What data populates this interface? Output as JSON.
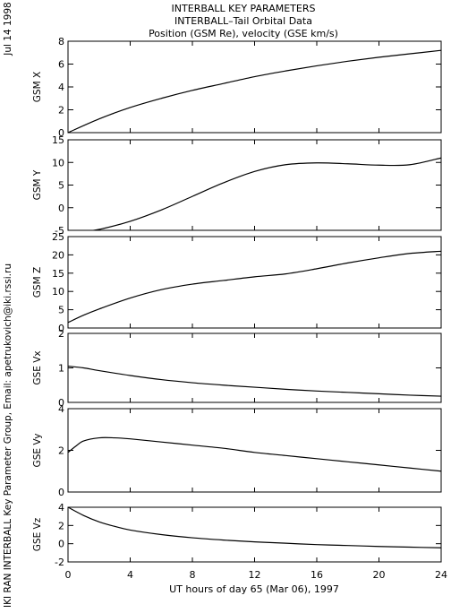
{
  "header": {
    "title_line1": "INTERBALL KEY PARAMETERS",
    "title_line2": "INTERBALL–Tail Orbital Data",
    "title_line3": "Position (GSM Re), velocity (GSE km/s)"
  },
  "side_labels": {
    "date": "Jul 14 1998",
    "credit": "IKI RAN INTERBALL Key Parameter Group, Email: apetrukovich@iki.rssi.ru"
  },
  "x_axis": {
    "label": "UT hours of day  65 (Mar 06), 1997",
    "min": 0,
    "max": 24,
    "ticks": [
      "0",
      "4",
      "8",
      "12",
      "16",
      "20",
      "24"
    ],
    "tick_values": [
      0,
      4,
      8,
      12,
      16,
      20,
      24
    ]
  },
  "chart_data": [
    {
      "type": "line",
      "ylabel": "GSM X",
      "ylim": [
        0,
        8
      ],
      "yticks": [
        0,
        2,
        4,
        6,
        8
      ],
      "x": [
        0,
        2,
        4,
        6,
        8,
        10,
        12,
        14,
        16,
        18,
        20,
        22,
        24
      ],
      "values": [
        0.0,
        1.2,
        2.2,
        3.0,
        3.7,
        4.3,
        4.9,
        5.4,
        5.85,
        6.25,
        6.6,
        6.9,
        7.2
      ]
    },
    {
      "type": "line",
      "ylabel": "GSM Y",
      "ylim": [
        -5,
        15
      ],
      "yticks": [
        -5,
        0,
        5,
        10,
        15
      ],
      "x": [
        0,
        1,
        2,
        4,
        6,
        8,
        10,
        12,
        14,
        16,
        18,
        20,
        22,
        24
      ],
      "values": [
        -5.5,
        -5.2,
        -4.8,
        -3.0,
        -0.5,
        2.5,
        5.5,
        8.0,
        9.5,
        9.9,
        9.7,
        9.4,
        9.5,
        11.0
      ]
    },
    {
      "type": "line",
      "ylabel": "GSM Z",
      "ylim": [
        0,
        25
      ],
      "yticks": [
        0,
        5,
        10,
        15,
        20,
        25
      ],
      "x": [
        0,
        1,
        2,
        4,
        6,
        8,
        10,
        12,
        14,
        16,
        18,
        20,
        22,
        24
      ],
      "values": [
        1.5,
        3.5,
        5.2,
        8.2,
        10.5,
        12.0,
        13.0,
        14.0,
        14.8,
        16.2,
        17.8,
        19.2,
        20.4,
        21.0
      ]
    },
    {
      "type": "line",
      "ylabel": "GSE Vx",
      "ylim": [
        0,
        2
      ],
      "yticks": [
        0,
        1,
        2
      ],
      "x": [
        0,
        1,
        2,
        4,
        6,
        8,
        10,
        12,
        14,
        16,
        18,
        20,
        22,
        24
      ],
      "values": [
        1.05,
        1.0,
        0.92,
        0.78,
        0.66,
        0.57,
        0.5,
        0.44,
        0.38,
        0.33,
        0.29,
        0.25,
        0.21,
        0.18
      ]
    },
    {
      "type": "line",
      "ylabel": "GSE Vy",
      "ylim": [
        0,
        4
      ],
      "yticks": [
        0,
        2,
        4
      ],
      "x": [
        0,
        0.5,
        1,
        2,
        3,
        4,
        6,
        8,
        10,
        12,
        14,
        16,
        18,
        20,
        22,
        24
      ],
      "values": [
        1.9,
        2.2,
        2.45,
        2.6,
        2.6,
        2.55,
        2.4,
        2.25,
        2.1,
        1.9,
        1.75,
        1.6,
        1.45,
        1.3,
        1.15,
        1.0
      ]
    },
    {
      "type": "line",
      "ylabel": "GSE Vz",
      "ylim": [
        -2,
        4
      ],
      "yticks": [
        -2,
        0,
        2,
        4
      ],
      "x": [
        0,
        1,
        2,
        3,
        4,
        6,
        8,
        10,
        12,
        14,
        16,
        18,
        20,
        22,
        24
      ],
      "values": [
        4.0,
        3.1,
        2.4,
        1.9,
        1.5,
        1.0,
        0.65,
        0.4,
        0.2,
        0.05,
        -0.1,
        -0.2,
        -0.3,
        -0.38,
        -0.45
      ]
    }
  ]
}
